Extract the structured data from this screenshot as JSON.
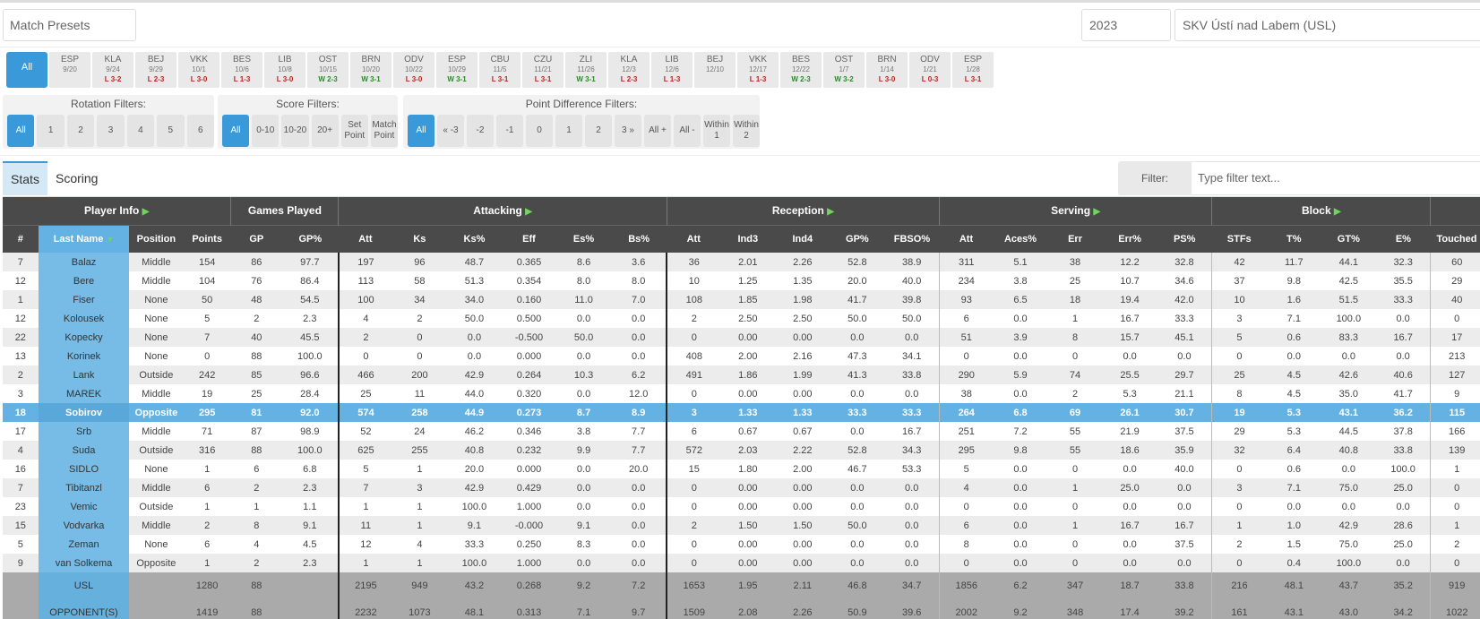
{
  "presets": {
    "label": "Match Presets"
  },
  "season": "2023",
  "team": "SKV Ústí nad Labem (USL)",
  "matches": [
    {
      "opp": "All"
    },
    {
      "opp": "ESP",
      "date": "9/20",
      "res": "",
      "wl": ""
    },
    {
      "opp": "KLA",
      "date": "9/24",
      "res": "L 3-2",
      "wl": "L"
    },
    {
      "opp": "BEJ",
      "date": "9/29",
      "res": "L 2-3",
      "wl": "L"
    },
    {
      "opp": "VKK",
      "date": "10/1",
      "res": "L 3-0",
      "wl": "L"
    },
    {
      "opp": "BES",
      "date": "10/6",
      "res": "L 1-3",
      "wl": "L"
    },
    {
      "opp": "LIB",
      "date": "10/8",
      "res": "L 3-0",
      "wl": "L"
    },
    {
      "opp": "OST",
      "date": "10/15",
      "res": "W 2-3",
      "wl": "W"
    },
    {
      "opp": "BRN",
      "date": "10/20",
      "res": "W 3-1",
      "wl": "W"
    },
    {
      "opp": "ODV",
      "date": "10/22",
      "res": "L 3-0",
      "wl": "L"
    },
    {
      "opp": "ESP",
      "date": "10/29",
      "res": "W 3-1",
      "wl": "W"
    },
    {
      "opp": "CBU",
      "date": "11/5",
      "res": "L 3-1",
      "wl": "L"
    },
    {
      "opp": "CZU",
      "date": "11/21",
      "res": "L 3-1",
      "wl": "L"
    },
    {
      "opp": "ZLI",
      "date": "11/26",
      "res": "W 3-1",
      "wl": "W"
    },
    {
      "opp": "KLA",
      "date": "12/3",
      "res": "L 2-3",
      "wl": "L"
    },
    {
      "opp": "LIB",
      "date": "12/6",
      "res": "L 1-3",
      "wl": "L"
    },
    {
      "opp": "BEJ",
      "date": "12/10",
      "res": "",
      "wl": ""
    },
    {
      "opp": "VKK",
      "date": "12/17",
      "res": "L 1-3",
      "wl": "L"
    },
    {
      "opp": "BES",
      "date": "12/22",
      "res": "W 2-3",
      "wl": "W"
    },
    {
      "opp": "OST",
      "date": "1/7",
      "res": "W 3-2",
      "wl": "W"
    },
    {
      "opp": "BRN",
      "date": "1/14",
      "res": "L 3-0",
      "wl": "L"
    },
    {
      "opp": "ODV",
      "date": "1/21",
      "res": "L 0-3",
      "wl": "L"
    },
    {
      "opp": "ESP",
      "date": "1/28",
      "res": "L 3-1",
      "wl": "L"
    }
  ],
  "filters": {
    "rotation": {
      "title": "Rotation Filters:",
      "buttons": [
        "All",
        "1",
        "2",
        "3",
        "4",
        "5",
        "6"
      ]
    },
    "score": {
      "title": "Score Filters:",
      "buttons": [
        "All",
        "0-10",
        "10-20",
        "20+",
        "Set Point",
        "Match Point"
      ]
    },
    "pointdiff": {
      "title": "Point Difference Filters:",
      "buttons": [
        "All",
        "« -3",
        "-2",
        "-1",
        "0",
        "1",
        "2",
        "3 »",
        "All +",
        "All -",
        "Within 1",
        "Within 2"
      ]
    }
  },
  "tabs": {
    "stats": "Stats",
    "scoring": "Scoring"
  },
  "filter": {
    "label": "Filter:",
    "placeholder": "Type filter text..."
  },
  "table": {
    "groups": [
      {
        "label": "Player Info",
        "arrow": true
      },
      {
        "label": "Games Played",
        "arrow": false
      },
      {
        "label": "Attacking",
        "arrow": true
      },
      {
        "label": "Reception",
        "arrow": true
      },
      {
        "label": "Serving",
        "arrow": true
      },
      {
        "label": "Block",
        "arrow": true
      },
      {
        "label": "",
        "arrow": false
      }
    ],
    "columns": [
      "#",
      "Last Name",
      "Position",
      "Points",
      "GP",
      "GP%",
      "Att",
      "Ks",
      "Ks%",
      "Eff",
      "Es%",
      "Bs%",
      "Att",
      "Ind3",
      "Ind4",
      "GP%",
      "FBSO%",
      "Att",
      "Aces%",
      "Err",
      "Err%",
      "PS%",
      "STFs",
      "T%",
      "GT%",
      "E%",
      "Touched"
    ],
    "rows": [
      [
        "7",
        "Balaz",
        "Middle",
        "154",
        "86",
        "97.7",
        "197",
        "96",
        "48.7",
        "0.365",
        "8.6",
        "3.6",
        "36",
        "2.01",
        "2.26",
        "52.8",
        "38.9",
        "311",
        "5.1",
        "38",
        "12.2",
        "32.8",
        "42",
        "11.7",
        "44.1",
        "32.3",
        "60"
      ],
      [
        "12",
        "Bere",
        "Middle",
        "104",
        "76",
        "86.4",
        "113",
        "58",
        "51.3",
        "0.354",
        "8.0",
        "8.0",
        "10",
        "1.25",
        "1.35",
        "20.0",
        "40.0",
        "234",
        "3.8",
        "25",
        "10.7",
        "34.6",
        "37",
        "9.8",
        "42.5",
        "35.5",
        "29"
      ],
      [
        "1",
        "Fiser",
        "None",
        "50",
        "48",
        "54.5",
        "100",
        "34",
        "34.0",
        "0.160",
        "11.0",
        "7.0",
        "108",
        "1.85",
        "1.98",
        "41.7",
        "39.8",
        "93",
        "6.5",
        "18",
        "19.4",
        "42.0",
        "10",
        "1.6",
        "51.5",
        "33.3",
        "40"
      ],
      [
        "12",
        "Kolousek",
        "None",
        "5",
        "2",
        "2.3",
        "4",
        "2",
        "50.0",
        "0.500",
        "0.0",
        "0.0",
        "2",
        "2.50",
        "2.50",
        "50.0",
        "50.0",
        "6",
        "0.0",
        "1",
        "16.7",
        "33.3",
        "3",
        "7.1",
        "100.0",
        "0.0",
        "0"
      ],
      [
        "22",
        "Kopecky",
        "None",
        "7",
        "40",
        "45.5",
        "2",
        "0",
        "0.0",
        "-0.500",
        "50.0",
        "0.0",
        "0",
        "0.00",
        "0.00",
        "0.0",
        "0.0",
        "51",
        "3.9",
        "8",
        "15.7",
        "45.1",
        "5",
        "0.6",
        "83.3",
        "16.7",
        "17"
      ],
      [
        "13",
        "Korinek",
        "None",
        "0",
        "88",
        "100.0",
        "0",
        "0",
        "0.0",
        "0.000",
        "0.0",
        "0.0",
        "408",
        "2.00",
        "2.16",
        "47.3",
        "34.1",
        "0",
        "0.0",
        "0",
        "0.0",
        "0.0",
        "0",
        "0.0",
        "0.0",
        "0.0",
        "213"
      ],
      [
        "2",
        "Lank",
        "Outside",
        "242",
        "85",
        "96.6",
        "466",
        "200",
        "42.9",
        "0.264",
        "10.3",
        "6.2",
        "491",
        "1.86",
        "1.99",
        "41.3",
        "33.8",
        "290",
        "5.9",
        "74",
        "25.5",
        "29.7",
        "25",
        "4.5",
        "42.6",
        "40.6",
        "127"
      ],
      [
        "3",
        "MAREK",
        "Middle",
        "19",
        "25",
        "28.4",
        "25",
        "11",
        "44.0",
        "0.320",
        "0.0",
        "12.0",
        "0",
        "0.00",
        "0.00",
        "0.0",
        "0.0",
        "38",
        "0.0",
        "2",
        "5.3",
        "21.1",
        "8",
        "4.5",
        "35.0",
        "41.7",
        "9"
      ],
      [
        "18",
        "Sobirov",
        "Opposite",
        "295",
        "81",
        "92.0",
        "574",
        "258",
        "44.9",
        "0.273",
        "8.7",
        "8.9",
        "3",
        "1.33",
        "1.33",
        "33.3",
        "33.3",
        "264",
        "6.8",
        "69",
        "26.1",
        "30.7",
        "19",
        "5.3",
        "43.1",
        "36.2",
        "115"
      ],
      [
        "17",
        "Srb",
        "Middle",
        "71",
        "87",
        "98.9",
        "52",
        "24",
        "46.2",
        "0.346",
        "3.8",
        "7.7",
        "6",
        "0.67",
        "0.67",
        "0.0",
        "16.7",
        "251",
        "7.2",
        "55",
        "21.9",
        "37.5",
        "29",
        "5.3",
        "44.5",
        "37.8",
        "166"
      ],
      [
        "4",
        "Suda",
        "Outside",
        "316",
        "88",
        "100.0",
        "625",
        "255",
        "40.8",
        "0.232",
        "9.9",
        "7.7",
        "572",
        "2.03",
        "2.22",
        "52.8",
        "34.3",
        "295",
        "9.8",
        "55",
        "18.6",
        "35.9",
        "32",
        "6.4",
        "40.8",
        "33.8",
        "139"
      ],
      [
        "16",
        "SIDLO",
        "None",
        "1",
        "6",
        "6.8",
        "5",
        "1",
        "20.0",
        "0.000",
        "0.0",
        "20.0",
        "15",
        "1.80",
        "2.00",
        "46.7",
        "53.3",
        "5",
        "0.0",
        "0",
        "0.0",
        "40.0",
        "0",
        "0.6",
        "0.0",
        "100.0",
        "1"
      ],
      [
        "7",
        "Tibitanzl",
        "Middle",
        "6",
        "2",
        "2.3",
        "7",
        "3",
        "42.9",
        "0.429",
        "0.0",
        "0.0",
        "0",
        "0.00",
        "0.00",
        "0.0",
        "0.0",
        "4",
        "0.0",
        "1",
        "25.0",
        "0.0",
        "3",
        "7.1",
        "75.0",
        "25.0",
        "0"
      ],
      [
        "23",
        "Vemic",
        "Outside",
        "1",
        "1",
        "1.1",
        "1",
        "1",
        "100.0",
        "1.000",
        "0.0",
        "0.0",
        "0",
        "0.00",
        "0.00",
        "0.0",
        "0.0",
        "0",
        "0.0",
        "0",
        "0.0",
        "0.0",
        "0",
        "0.0",
        "0.0",
        "0.0",
        "0"
      ],
      [
        "15",
        "Vodvarka",
        "Middle",
        "2",
        "8",
        "9.1",
        "11",
        "1",
        "9.1",
        "-0.000",
        "9.1",
        "0.0",
        "2",
        "1.50",
        "1.50",
        "50.0",
        "0.0",
        "6",
        "0.0",
        "1",
        "16.7",
        "16.7",
        "1",
        "1.0",
        "42.9",
        "28.6",
        "1"
      ],
      [
        "5",
        "Zeman",
        "None",
        "6",
        "4",
        "4.5",
        "12",
        "4",
        "33.3",
        "0.250",
        "8.3",
        "0.0",
        "0",
        "0.00",
        "0.00",
        "0.0",
        "0.0",
        "8",
        "0.0",
        "0",
        "0.0",
        "37.5",
        "2",
        "1.5",
        "75.0",
        "25.0",
        "2"
      ],
      [
        "9",
        "van Solkema",
        "Opposite",
        "1",
        "2",
        "2.3",
        "1",
        "1",
        "100.0",
        "1.000",
        "0.0",
        "0.0",
        "0",
        "0.00",
        "0.00",
        "0.0",
        "0.0",
        "0",
        "0.0",
        "0",
        "0.0",
        "0.0",
        "0",
        "0.4",
        "100.0",
        "0.0",
        "0"
      ]
    ],
    "highlight_row": 8,
    "totals": [
      [
        "",
        "USL",
        "",
        "1280",
        "88",
        "",
        "2195",
        "949",
        "43.2",
        "0.268",
        "9.2",
        "7.2",
        "1653",
        "1.95",
        "2.11",
        "46.8",
        "34.7",
        "1856",
        "6.2",
        "347",
        "18.7",
        "33.8",
        "216",
        "48.1",
        "43.7",
        "35.2",
        "919"
      ],
      [
        "",
        "OPPONENT(S)",
        "",
        "1419",
        "88",
        "",
        "2232",
        "1073",
        "48.1",
        "0.313",
        "7.1",
        "9.7",
        "1509",
        "2.08",
        "2.26",
        "50.9",
        "39.6",
        "2002",
        "9.2",
        "348",
        "17.4",
        "39.2",
        "161",
        "43.1",
        "43.0",
        "34.2",
        "1022"
      ]
    ]
  },
  "colors": {
    "accent": "#3a9ad9",
    "header": "#4a4a4a",
    "lastname_col": "#76bce6",
    "win": "#2a8a2a",
    "loss": "#b22222",
    "arrow": "#6fd65a"
  }
}
